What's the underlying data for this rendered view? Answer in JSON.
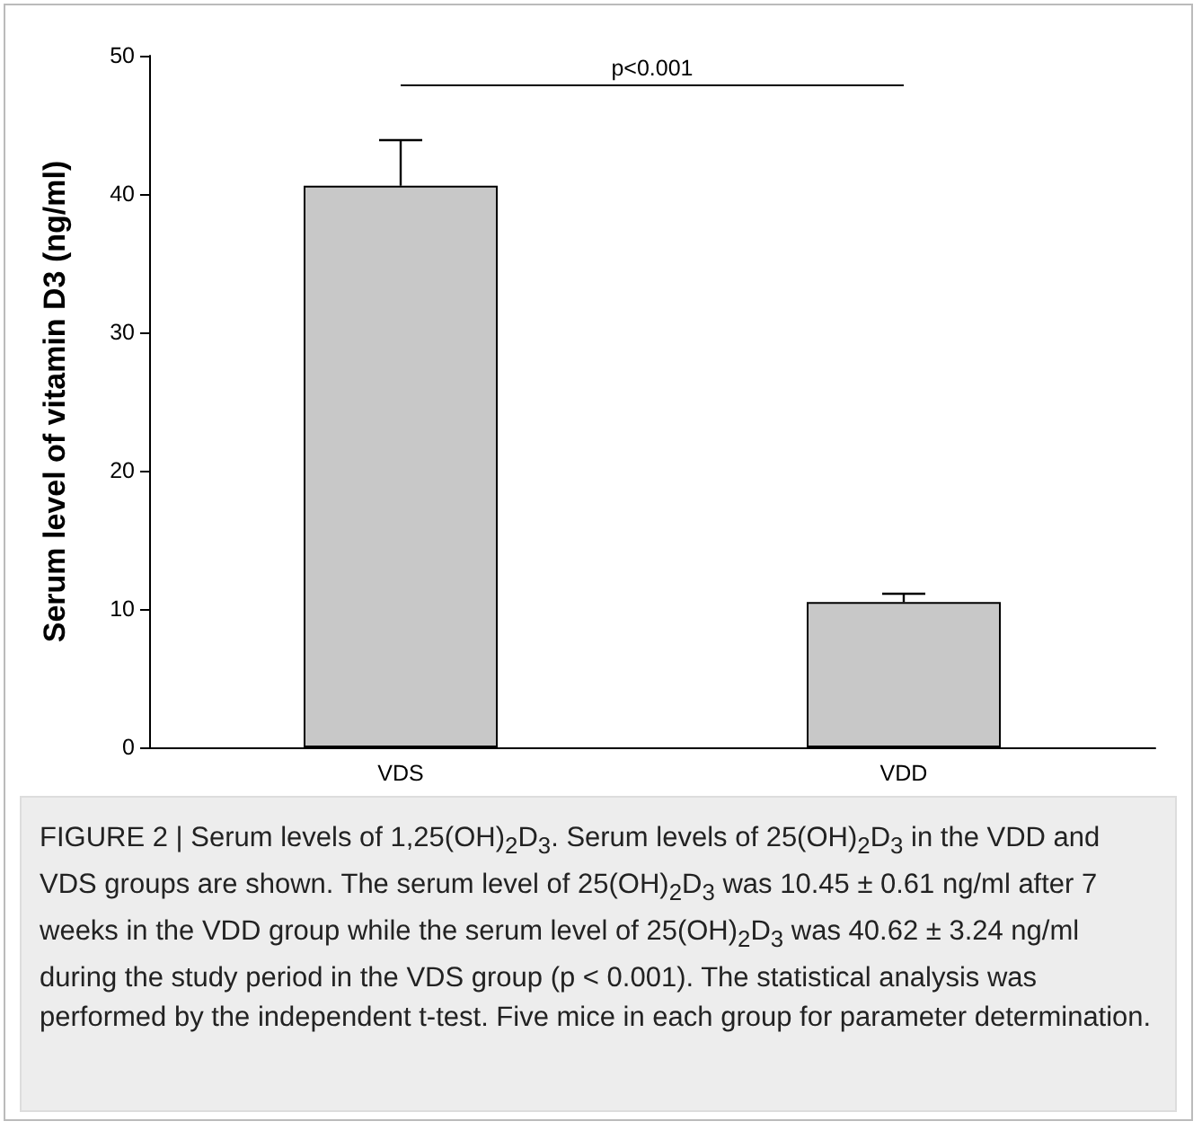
{
  "chart_data": {
    "type": "bar",
    "ylabel": "Serum level of vitamin D3 (ng/ml)",
    "categories": [
      "VDS",
      "VDD"
    ],
    "values": [
      40.6,
      10.5
    ],
    "errors": [
      [
        40.6,
        43.9
      ],
      [
        10.5,
        11.1
      ]
    ],
    "color": "#c8c8c8",
    "ylim": [
      0,
      50
    ],
    "yticks": [
      0,
      10,
      20,
      30,
      40,
      50
    ],
    "grid": false,
    "annotations": [
      "p<0.001",
      "FIGURE 2 | Serum levels of 1,25(OH)$_{2}$D$_{3}$. Serum levels of 25(OH)$_{2}$D$_{3}$ in the VDD and VDS groups are shown. The serum level of 25(OH)$_{2}$D$_{3}$ was 10.45 ± 0.61 ng/ml after 7 weeks in the VDD group while the serum level of 25(OH)$_{2}$D$_{3}$ was 40.62 ± 3.24 ng/ml during the study period in the VDS group (p < 0.001). The statistical analysis was performed by the independent t-test. Five mice in each group for parameter determination."
    ]
  }
}
